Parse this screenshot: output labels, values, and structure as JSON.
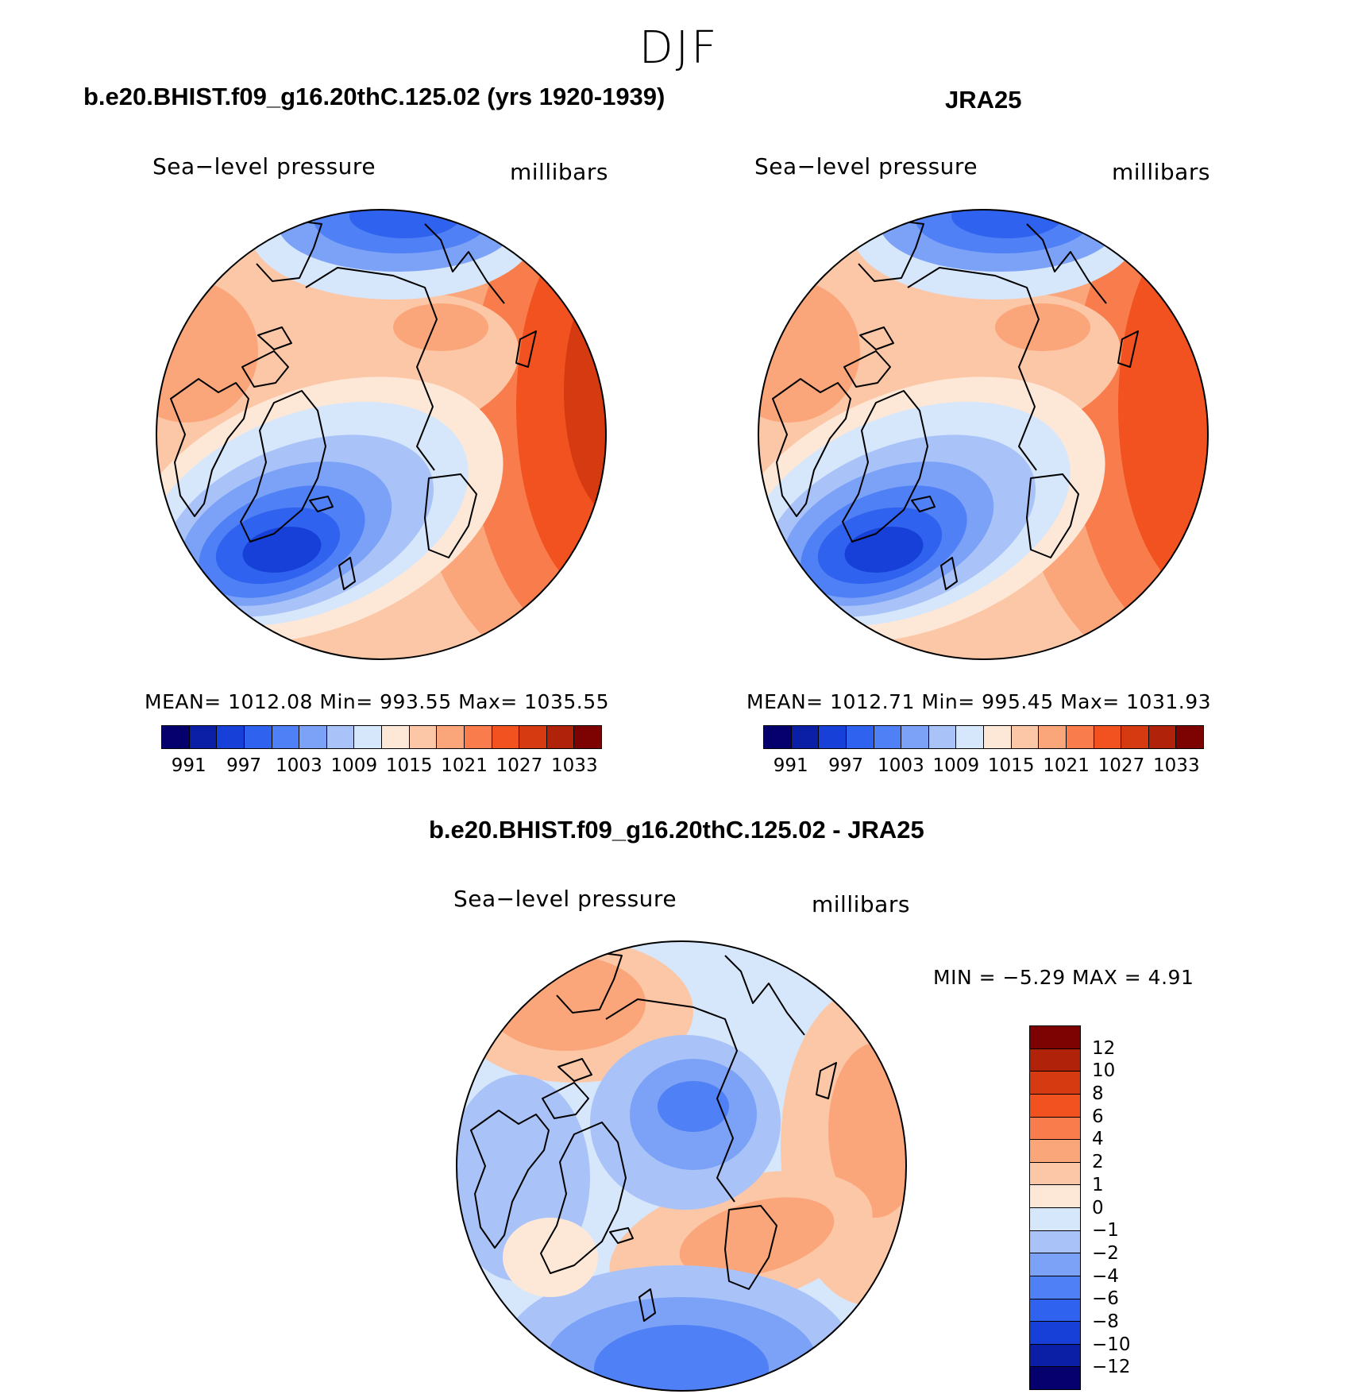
{
  "page_title": "DJF",
  "chart_data": [
    {
      "type": "heatmap",
      "projection": "north-polar-stereographic",
      "title": "b.e20.BHIST.f09_g16.20thC.125.02 (yrs 1920-1939)",
      "field_label": "Sea−level pressure",
      "units": "millibars",
      "stats": {
        "mean": "1012.08",
        "min": "993.55",
        "max": "1035.55"
      },
      "stats_text": "MEAN=  1012.08   Min=  993.55   Max=  1035.55",
      "colorbar_ticks": [
        "991",
        "997",
        "1003",
        "1009",
        "1015",
        "1021",
        "1027",
        "1033"
      ]
    },
    {
      "type": "heatmap",
      "projection": "north-polar-stereographic",
      "title": "JRA25",
      "field_label": "Sea−level pressure",
      "units": "millibars",
      "stats": {
        "mean": "1012.71",
        "min": "995.45",
        "max": "1031.93"
      },
      "stats_text": "MEAN=  1012.71   Min=  995.45   Max=  1031.93",
      "colorbar_ticks": [
        "991",
        "997",
        "1003",
        "1009",
        "1015",
        "1021",
        "1027",
        "1033"
      ]
    },
    {
      "type": "heatmap",
      "projection": "north-polar-stereographic",
      "title": "b.e20.BHIST.f09_g16.20thC.125.02 - JRA25",
      "field_label": "Sea−level pressure",
      "units": "millibars",
      "stats": {
        "min": "−5.29",
        "max": "4.91"
      },
      "stats_text": "MIN =    −5.29  MAX =     4.91",
      "colorbar_ticks": [
        "12",
        "10",
        "8",
        "6",
        "4",
        "2",
        "1",
        "0",
        "−1",
        "−2",
        "−4",
        "−6",
        "−8",
        "−10",
        "−12"
      ]
    }
  ],
  "colors": {
    "abs_palette": [
      "#05006e",
      "#0a1fa6",
      "#1740d8",
      "#2f62ee",
      "#4f80f5",
      "#7ba2f7",
      "#a9c3f9",
      "#d6e6fb",
      "#fde8d8",
      "#fcc7a6",
      "#fba57a",
      "#f97d4c",
      "#f1521f",
      "#d63a10",
      "#b0220a",
      "#7d0303"
    ],
    "diff_palette": [
      "#7d0303",
      "#b0220a",
      "#d63a10",
      "#f1521f",
      "#f97d4c",
      "#fba57a",
      "#fcc7a6",
      "#fde8d8",
      "#d6e6fb",
      "#a9c3f9",
      "#7ba2f7",
      "#4f80f5",
      "#2f62ee",
      "#1740d8",
      "#0a1fa6",
      "#05006e"
    ]
  }
}
